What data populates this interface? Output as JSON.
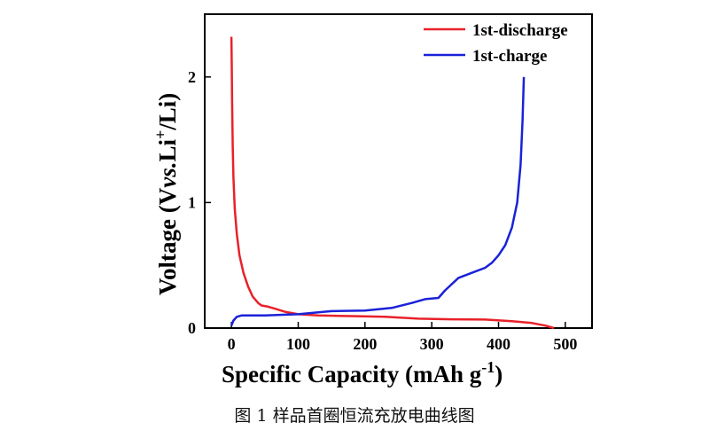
{
  "chart_data": {
    "type": "line",
    "title": "",
    "xlabel": "Specific Capacity (mAh g",
    "xlabel_sup": "-1",
    "xlabel_close": ")",
    "ylabel": "Voltage (V",
    "ylabel_vs": "vs.",
    "ylabel_li": "Li",
    "ylabel_sup": "+",
    "ylabel_end": "/Li)",
    "xlim": [
      -40,
      540
    ],
    "ylim": [
      0,
      2.5
    ],
    "xticks": [
      0,
      100,
      200,
      300,
      400,
      500
    ],
    "yticks": [
      0,
      1,
      2
    ],
    "legend_position": "top-right",
    "series": [
      {
        "name": "1st-discharge",
        "color": "#e8212a",
        "x": [
          0,
          0.5,
          1,
          2,
          3,
          5,
          8,
          12,
          18,
          25,
          32,
          40,
          45,
          55,
          65,
          80,
          100,
          130,
          180,
          230,
          280,
          330,
          380,
          420,
          450,
          470,
          483
        ],
        "y": [
          2.32,
          2.1,
          1.8,
          1.45,
          1.2,
          0.95,
          0.75,
          0.58,
          0.44,
          0.33,
          0.25,
          0.2,
          0.18,
          0.17,
          0.155,
          0.13,
          0.11,
          0.1,
          0.095,
          0.09,
          0.075,
          0.07,
          0.068,
          0.055,
          0.04,
          0.02,
          0.0
        ]
      },
      {
        "name": "1st-charge",
        "color": "#1a22d8",
        "x": [
          0,
          3,
          8,
          15,
          25,
          50,
          100,
          130,
          150,
          200,
          240,
          270,
          290,
          310,
          320,
          340,
          360,
          380,
          390,
          400,
          410,
          420,
          428,
          433,
          436,
          438
        ],
        "y": [
          0.02,
          0.06,
          0.09,
          0.1,
          0.1,
          0.1,
          0.11,
          0.125,
          0.135,
          0.14,
          0.16,
          0.2,
          0.23,
          0.24,
          0.3,
          0.4,
          0.44,
          0.48,
          0.52,
          0.58,
          0.66,
          0.8,
          1.0,
          1.3,
          1.65,
          2.0
        ]
      }
    ]
  },
  "caption": "图 1  样品首圈恒流充放电曲线图"
}
